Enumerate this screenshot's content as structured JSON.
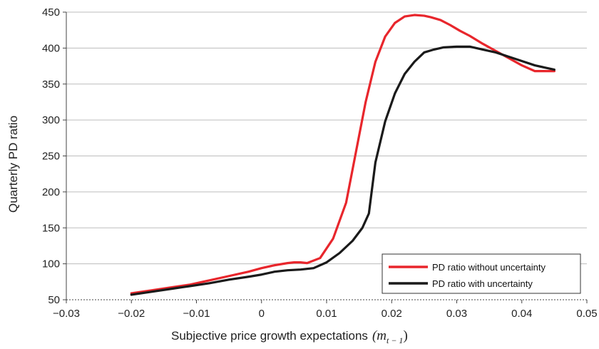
{
  "chart_data": {
    "type": "line",
    "xlabel": "Subjective price growth expectations",
    "xlabel_math": "(m",
    "xlabel_sub": "t − 1",
    "xlabel_close": ")",
    "ylabel": "Quarterly  PD ratio",
    "xlim": [
      -0.03,
      0.05
    ],
    "ylim": [
      50,
      450
    ],
    "xticks": [
      -0.03,
      -0.02,
      -0.01,
      0,
      0.01,
      0.02,
      0.03,
      0.04,
      0.05
    ],
    "xtick_labels": [
      "−0.03",
      "−0.02",
      "−0.01",
      "0",
      "0.01",
      "0.02",
      "0.03",
      "0.04",
      "0.05"
    ],
    "yticks": [
      50,
      100,
      150,
      200,
      250,
      300,
      350,
      400,
      450
    ],
    "ytick_labels": [
      "50",
      "100",
      "150",
      "200",
      "250",
      "300",
      "350",
      "400",
      "450"
    ],
    "grid": "horizontal",
    "legend_position": "bottom-right",
    "series": [
      {
        "name": "PD ratio without uncertainty",
        "color": "#e8262c",
        "x": [
          -0.02,
          -0.017,
          -0.014,
          -0.011,
          -0.008,
          -0.005,
          -0.002,
          0.0,
          0.002,
          0.004,
          0.005,
          0.006,
          0.007,
          0.009,
          0.011,
          0.013,
          0.0145,
          0.016,
          0.0175,
          0.019,
          0.0205,
          0.022,
          0.0235,
          0.025,
          0.026,
          0.0275,
          0.029,
          0.0305,
          0.032,
          0.034,
          0.036,
          0.038,
          0.04,
          0.042,
          0.045
        ],
        "y": [
          59,
          63,
          67,
          71,
          77,
          83,
          89,
          94,
          98,
          101,
          102,
          102,
          101,
          108,
          135,
          185,
          255,
          325,
          381,
          416,
          435,
          444,
          446,
          445,
          443,
          439,
          432,
          424,
          417,
          406,
          396,
          386,
          376,
          368,
          368
        ]
      },
      {
        "name": "PD ratio with uncertainty",
        "color": "#1a1a1a",
        "x": [
          -0.02,
          -0.017,
          -0.014,
          -0.011,
          -0.008,
          -0.005,
          -0.002,
          0.0,
          0.002,
          0.004,
          0.006,
          0.008,
          0.01,
          0.012,
          0.014,
          0.0155,
          0.0165,
          0.0175,
          0.019,
          0.0205,
          0.022,
          0.0235,
          0.025,
          0.0265,
          0.028,
          0.03,
          0.032,
          0.034,
          0.036,
          0.038,
          0.04,
          0.042,
          0.045
        ],
        "y": [
          57,
          61,
          65,
          69,
          73,
          78,
          82,
          85,
          89,
          91,
          92,
          94,
          102,
          115,
          132,
          150,
          170,
          241,
          298,
          337,
          364,
          381,
          394,
          398,
          401,
          402,
          402,
          398,
          394,
          388,
          382,
          376,
          370
        ]
      }
    ]
  }
}
